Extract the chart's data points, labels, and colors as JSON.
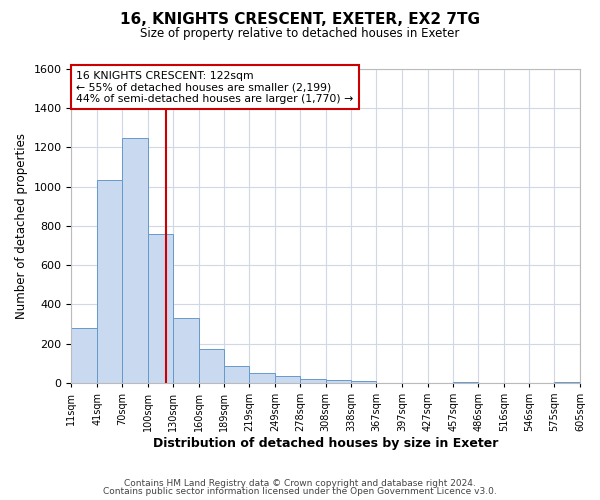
{
  "title": "16, KNIGHTS CRESCENT, EXETER, EX2 7TG",
  "subtitle": "Size of property relative to detached houses in Exeter",
  "xlabel": "Distribution of detached houses by size in Exeter",
  "ylabel": "Number of detached properties",
  "bin_edges": [
    11,
    41,
    70,
    100,
    130,
    160,
    189,
    219,
    249,
    278,
    308,
    338,
    367,
    397,
    427,
    457,
    486,
    516,
    546,
    575,
    605
  ],
  "bin_heights": [
    280,
    1035,
    1250,
    760,
    330,
    175,
    85,
    50,
    35,
    20,
    15,
    10,
    0,
    0,
    0,
    5,
    0,
    0,
    0,
    5
  ],
  "bar_color": "#c8d9f0",
  "bar_edgecolor": "#6699cc",
  "property_line_x": 122,
  "property_line_color": "#cc0000",
  "annotation_text": "16 KNIGHTS CRESCENT: 122sqm\n← 55% of detached houses are smaller (2,199)\n44% of semi-detached houses are larger (1,770) →",
  "annotation_box_edgecolor": "#cc0000",
  "ylim": [
    0,
    1600
  ],
  "yticks": [
    0,
    200,
    400,
    600,
    800,
    1000,
    1200,
    1400,
    1600
  ],
  "tick_labels": [
    "11sqm",
    "41sqm",
    "70sqm",
    "100sqm",
    "130sqm",
    "160sqm",
    "189sqm",
    "219sqm",
    "249sqm",
    "278sqm",
    "308sqm",
    "338sqm",
    "367sqm",
    "397sqm",
    "427sqm",
    "457sqm",
    "486sqm",
    "516sqm",
    "546sqm",
    "575sqm",
    "605sqm"
  ],
  "footer_line1": "Contains HM Land Registry data © Crown copyright and database right 2024.",
  "footer_line2": "Contains public sector information licensed under the Open Government Licence v3.0.",
  "background_color": "#ffffff",
  "grid_color": "#d0d8e8"
}
